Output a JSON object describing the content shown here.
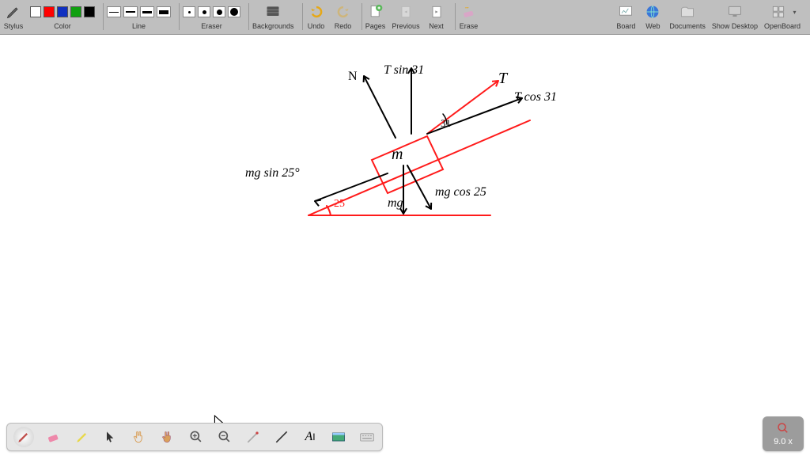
{
  "toolbar": {
    "stylus_label": "Stylus",
    "color_label": "Color",
    "line_label": "Line",
    "eraser_label": "Eraser",
    "backgrounds_label": "Backgrounds",
    "undo_label": "Undo",
    "redo_label": "Redo",
    "pages_label": "Pages",
    "previous_label": "Previous",
    "next_label": "Next",
    "erase_label": "Erase",
    "board_label": "Board",
    "web_label": "Web",
    "documents_label": "Documents",
    "showdesktop_label": "Show Desktop",
    "openboard_label": "OpenBoard",
    "colors": [
      "#ffffff",
      "#ff0000",
      "#1030c0",
      "#10a010",
      "#000000"
    ],
    "line_heights": [
      1,
      2,
      3,
      5
    ],
    "dot_sizes": [
      3,
      5,
      7,
      10
    ]
  },
  "zoom": {
    "label": "9.0 x"
  },
  "drawing": {
    "red": "#ff1a1a",
    "black": "#000000",
    "labels": {
      "N": "N",
      "Tsin": "T sin 31",
      "T": "T",
      "Tcos": "T cos 31",
      "angle31": "31",
      "m": "m",
      "mgsin": "mg sin 25°",
      "mg": "mg",
      "mgcos": "mg cos 25",
      "angle25": "25"
    }
  }
}
